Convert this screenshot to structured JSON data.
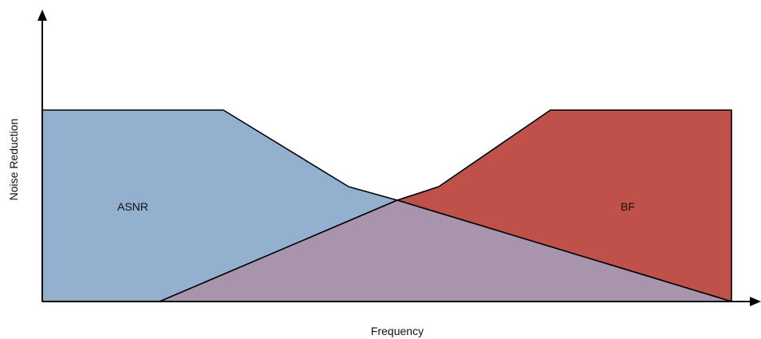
{
  "diagram": {
    "xlabel": "Frequency",
    "ylabel": "Noise Reduction",
    "regions": [
      {
        "id": "asnr",
        "label": "ASNR",
        "color": "#94b0cf"
      },
      {
        "id": "bf",
        "label": "BF",
        "color": "#c0514a"
      },
      {
        "id": "overlap",
        "label": "",
        "color": "#a994ad"
      }
    ],
    "colors": {
      "outline": "#000000",
      "axis": "#000000",
      "background": "#ffffff"
    }
  }
}
